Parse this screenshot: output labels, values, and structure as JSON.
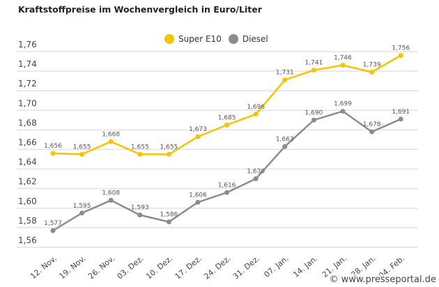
{
  "chart_data": {
    "type": "line",
    "title": "Kraftstoffpreise im Wochenvergleich in Euro/Liter",
    "xlabel": "",
    "ylabel": "",
    "ylim": [
      1.56,
      1.76
    ],
    "yticks": [
      "1,56",
      "1,58",
      "1,60",
      "1,62",
      "1,64",
      "1,66",
      "1,68",
      "1,70",
      "1,72",
      "1,74",
      "1,76"
    ],
    "grid": true,
    "legend_position": "top-center",
    "categories": [
      "12. Nov.",
      "19. Nov.",
      "26. Nov.",
      "03. Dez.",
      "10. Dez.",
      "17. Dez.",
      "24. Dez.",
      "31. Dez.",
      "07. Jan.",
      "14. Jan.",
      "21. Jan.",
      "28. Jan.",
      "04. Feb."
    ],
    "series": [
      {
        "name": "Super E10",
        "color": "#f5c400",
        "values": [
          1.656,
          1.655,
          1.668,
          1.655,
          1.655,
          1.673,
          1.685,
          1.696,
          1.731,
          1.741,
          1.746,
          1.739,
          1.756
        ],
        "labels": [
          "1,656",
          "1,655",
          "1,668",
          "1,655",
          "1,655",
          "1,673",
          "1,685",
          "1,696",
          "1,731",
          "1,741",
          "1,746",
          "1,739",
          "1,756"
        ]
      },
      {
        "name": "Diesel",
        "color": "#8c8c8c",
        "values": [
          1.577,
          1.595,
          1.608,
          1.593,
          1.586,
          1.606,
          1.616,
          1.63,
          1.663,
          1.69,
          1.699,
          1.678,
          1.691
        ],
        "labels": [
          "1,577",
          "1,595",
          "1,608",
          "1,593",
          "1,586",
          "1,606",
          "1,616",
          "1,630",
          "1,663",
          "1,690",
          "1,699",
          "1,678",
          "1,691"
        ]
      }
    ]
  },
  "watermark": "© www.presseportal.de"
}
